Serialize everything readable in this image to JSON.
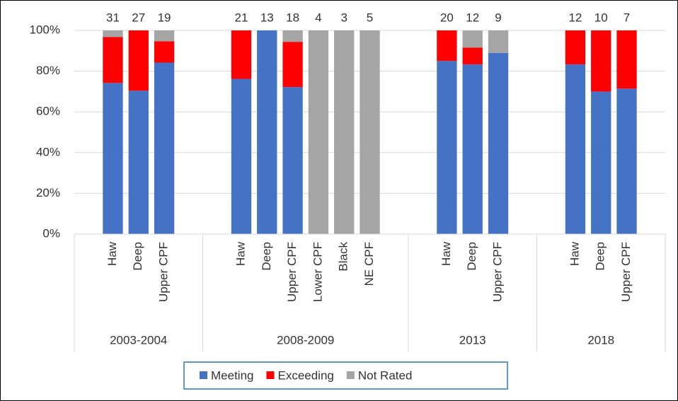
{
  "chart_data": {
    "type": "stacked-bar-100",
    "groups": [
      {
        "label": "2003-2004",
        "categories": [
          null,
          "Haw",
          "Deep",
          "Upper CPF",
          null
        ]
      },
      {
        "label": "2008-2009",
        "categories": [
          null,
          "Haw",
          "Deep",
          "Upper CPF",
          "Lower CPF",
          "Black",
          "NE CPF",
          null
        ]
      },
      {
        "label": "2013",
        "categories": [
          null,
          "Haw",
          "Deep",
          "Upper CPF",
          null
        ]
      },
      {
        "label": "2018",
        "categories": [
          null,
          "Haw",
          "Deep",
          "Upper CPF",
          null
        ]
      }
    ],
    "totals": [
      null,
      31,
      27,
      19,
      null,
      null,
      21,
      13,
      18,
      4,
      3,
      5,
      null,
      null,
      20,
      12,
      9,
      null,
      null,
      12,
      10,
      7,
      null
    ],
    "series": [
      {
        "name": "Meeting",
        "color": "#4472c4",
        "values": [
          null,
          74.2,
          70.4,
          84.2,
          null,
          null,
          76.2,
          100,
          72.2,
          0,
          0,
          0,
          null,
          null,
          85,
          83.3,
          88.9,
          null,
          null,
          83.3,
          70,
          71.4,
          null
        ]
      },
      {
        "name": "Exceeding",
        "color": "#ff0000",
        "values": [
          null,
          22.6,
          29.6,
          10.5,
          null,
          null,
          23.8,
          0,
          22.2,
          0,
          0,
          0,
          null,
          null,
          15,
          8.3,
          0,
          null,
          null,
          16.7,
          30,
          28.6,
          null
        ]
      },
      {
        "name": "Not Rated",
        "color": "#a5a5a5",
        "values": [
          null,
          3.2,
          0,
          5.3,
          null,
          null,
          0,
          0,
          5.6,
          100,
          100,
          100,
          null,
          null,
          0,
          8.3,
          11.1,
          null,
          null,
          0,
          0,
          0,
          null
        ]
      }
    ],
    "ylim": [
      0,
      100
    ],
    "yticks": [
      {
        "value": 0,
        "label": "0%"
      },
      {
        "value": 20,
        "label": "20%"
      },
      {
        "value": 40,
        "label": "40%"
      },
      {
        "value": 60,
        "label": "60%"
      },
      {
        "value": 80,
        "label": "80%"
      },
      {
        "value": 100,
        "label": "100%"
      }
    ],
    "grid": true,
    "legend": "bottom"
  }
}
